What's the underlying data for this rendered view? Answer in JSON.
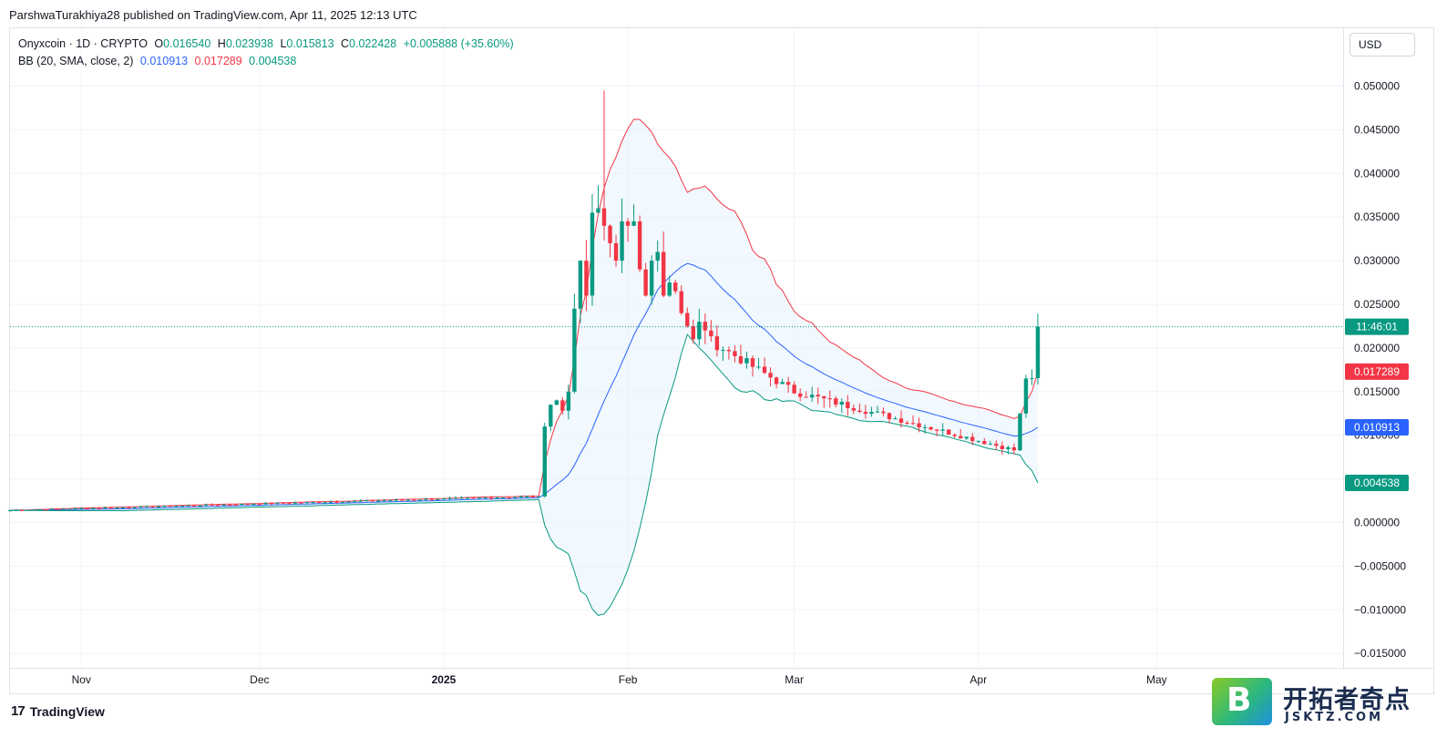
{
  "header": {
    "published_by": "ParshwaTurakhiya28 published on TradingView.com, Apr 11, 2025 12:13 UTC"
  },
  "legend": {
    "symbol": "Onyxcoin · 1D · CRYPTO",
    "open_label": "O",
    "open": "0.016540",
    "high_label": "H",
    "high": "0.023938",
    "low_label": "L",
    "low": "0.015813",
    "close_label": "C",
    "close": "0.022428",
    "change": "+0.005888 (+35.60%)",
    "indicator": "BB (20, SMA, close, 2)",
    "bb_basis": "0.010913",
    "bb_upper": "0.017289",
    "bb_lower": "0.004538"
  },
  "currency_button": "USD",
  "footer": {
    "brand": "TradingView",
    "brand_icon": "tradingview-logo-icon"
  },
  "watermark": {
    "letter": "B",
    "name": "开拓者奇点",
    "url": "JSKTZ.COM"
  },
  "colors": {
    "up": "#089981",
    "down": "#f23645",
    "basis": "#2962ff",
    "upper": "#f23645",
    "lower": "#089981",
    "band_fill": "#e3f2fd"
  },
  "chart_data": {
    "type": "candlestick",
    "title": "Onyxcoin · 1D · CRYPTO",
    "ylim": [
      -0.016,
      0.053
    ],
    "y_ticks": [
      "0.050000",
      "0.045000",
      "0.040000",
      "0.035000",
      "0.030000",
      "0.025000",
      "0.020000",
      "0.015000",
      "0.010000",
      "0.005000",
      "0.000000",
      "−0.005000",
      "−0.010000",
      "−0.015000"
    ],
    "x_ticks": [
      {
        "label": "Nov",
        "date": "2024-11-01"
      },
      {
        "label": "Dec",
        "date": "2024-12-01"
      },
      {
        "label": "2025",
        "date": "2025-01-01",
        "bold": true
      },
      {
        "label": "Feb",
        "date": "2025-02-01"
      },
      {
        "label": "Mar",
        "date": "2025-03-01"
      },
      {
        "label": "Apr",
        "date": "2025-04-01"
      },
      {
        "label": "May",
        "date": "2025-05-01"
      }
    ],
    "price_labels": [
      {
        "name": "countdown",
        "text": "11:46:01",
        "value": 0.022428,
        "color": "#089981"
      },
      {
        "name": "bb-upper",
        "text": "0.017289",
        "value": 0.017289,
        "color": "#f23645"
      },
      {
        "name": "bb-basis",
        "text": "0.010913",
        "value": 0.010913,
        "color": "#2962ff"
      },
      {
        "name": "bb-lower",
        "text": "0.004538",
        "value": 0.004538,
        "color": "#089981"
      }
    ],
    "last_price": 0.022428,
    "key_points": [
      {
        "date": "2024-10-20",
        "close": 0.0014
      },
      {
        "date": "2025-01-17",
        "close": 0.003
      },
      {
        "date": "2025-01-23",
        "close": 0.0245
      },
      {
        "date": "2025-01-27",
        "close": 0.0355
      },
      {
        "date": "2025-01-28",
        "high": 0.0495
      },
      {
        "date": "2025-02-12",
        "close": 0.022
      },
      {
        "date": "2025-03-01",
        "close": 0.015
      },
      {
        "date": "2025-04-07",
        "close": 0.0083
      },
      {
        "date": "2025-04-11",
        "close": 0.022428
      }
    ],
    "series": [
      {
        "name": "BB upper",
        "values_ref": "upper"
      },
      {
        "name": "BB basis",
        "values_ref": "basis"
      },
      {
        "name": "BB lower",
        "values_ref": "lower"
      }
    ]
  }
}
